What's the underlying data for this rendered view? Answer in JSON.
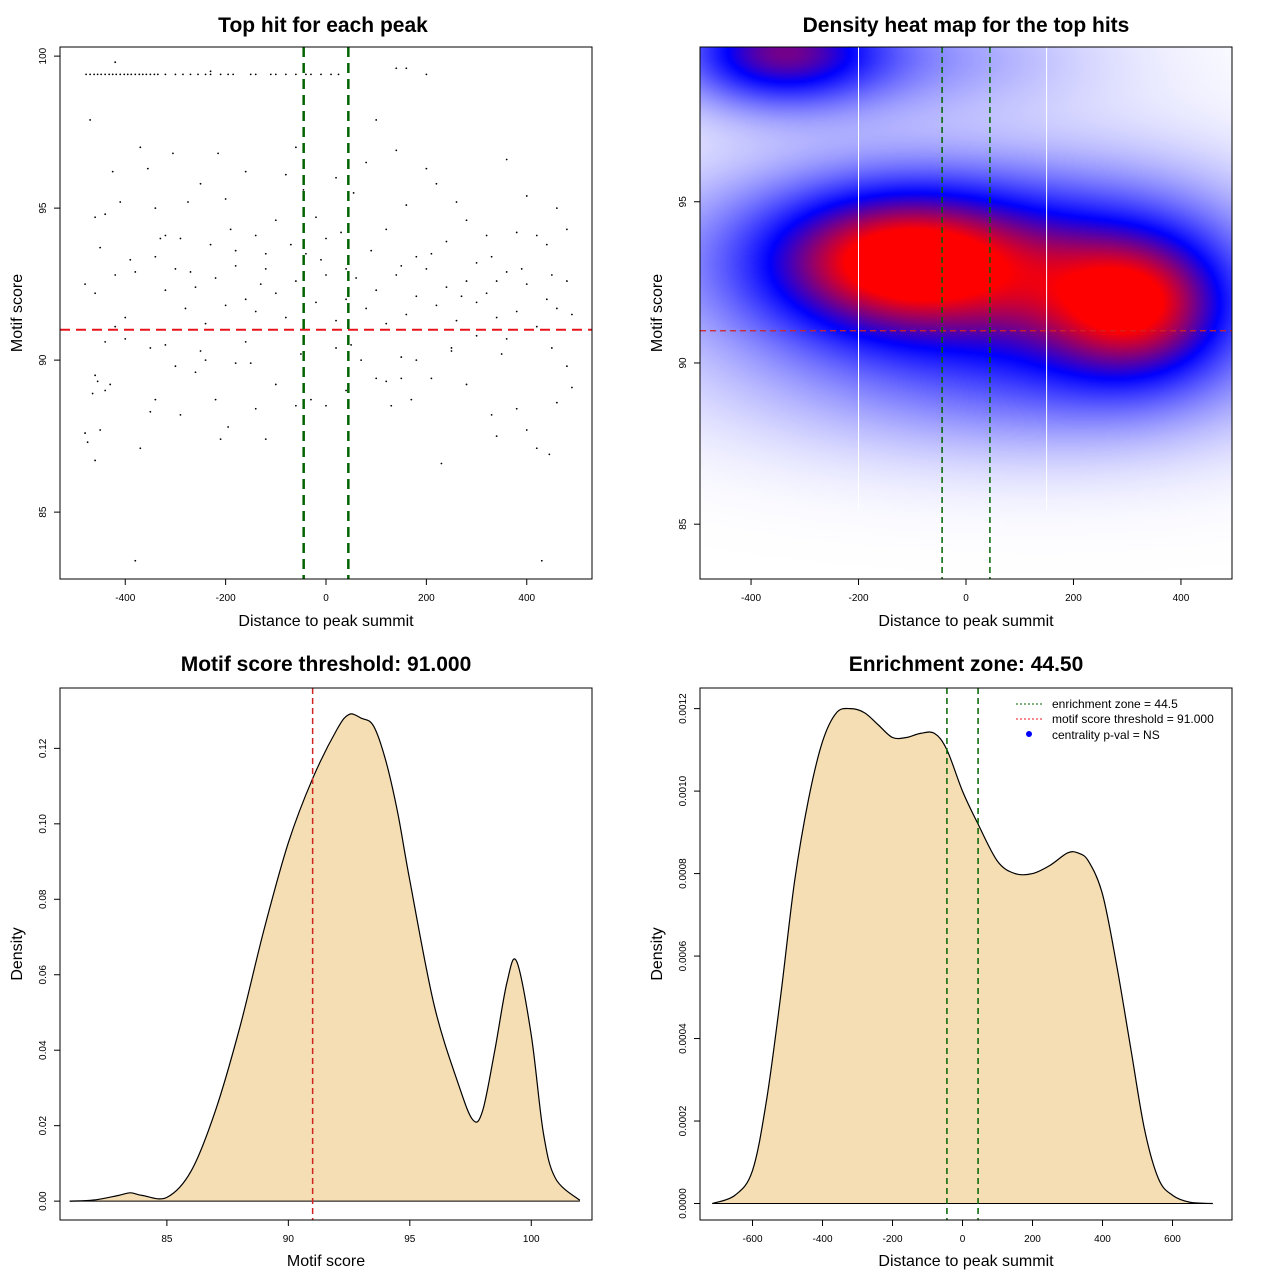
{
  "chart_data": [
    {
      "type": "scatter",
      "title": "Top hit for each peak",
      "xlabel": "Distance to peak summit",
      "ylabel": "Motif score",
      "xlim": [
        -530,
        530
      ],
      "ylim": [
        82.8,
        100.3
      ],
      "xticks": [
        "-400",
        "-200",
        "0",
        "200",
        "400"
      ],
      "yticks": [
        "85",
        "90",
        "95",
        "100"
      ],
      "hlines": [
        {
          "y": 91.0,
          "color": "#e8141e"
        }
      ],
      "vlines": [
        {
          "x": -44.5,
          "color": "#006400"
        },
        {
          "x": 44.5,
          "color": "#006400"
        }
      ],
      "points_note": "approx. 500 top hits; score-capped row near 99.4",
      "top_row_score": 99.4,
      "top_row_x": [
        -478,
        -470,
        -462,
        -455,
        -448,
        -440,
        -432,
        -425,
        -418,
        -410,
        -402,
        -395,
        -388,
        -380,
        -372,
        -365,
        -358,
        -350,
        -342,
        -335,
        -320,
        -300,
        -285,
        -270,
        -255,
        -240,
        -230,
        -210,
        -195,
        -185,
        -150,
        -140,
        -110,
        -100,
        -80,
        -60,
        -40,
        -30,
        -10,
        10,
        25,
        200
      ],
      "scatter_points": [
        [
          -480,
          87.6
        ],
        [
          -475,
          87.3
        ],
        [
          -465,
          88.9
        ],
        [
          -460,
          86.7
        ],
        [
          -455,
          89.3
        ],
        [
          -450,
          87.7
        ],
        [
          -440,
          89.0
        ],
        [
          -430,
          89.2
        ],
        [
          -420,
          91.1
        ],
        [
          -400,
          90.7
        ],
        [
          -380,
          83.4
        ],
        [
          -370,
          87.1
        ],
        [
          -350,
          88.3
        ],
        [
          -340,
          88.7
        ],
        [
          -320,
          90.5
        ],
        [
          -300,
          89.8
        ],
        [
          -290,
          88.2
        ],
        [
          -260,
          89.6
        ],
        [
          -240,
          90.0
        ],
        [
          -220,
          88.7
        ],
        [
          -210,
          87.4
        ],
        [
          -195,
          87.8
        ],
        [
          -180,
          89.9
        ],
        [
          -160,
          90.6
        ],
        [
          -140,
          88.4
        ],
        [
          -120,
          87.4
        ],
        [
          -100,
          89.2
        ],
        [
          -60,
          88.5
        ],
        [
          -30,
          88.7
        ],
        [
          0,
          88.5
        ],
        [
          20,
          90.4
        ],
        [
          40,
          89.0
        ],
        [
          70,
          90.0
        ],
        [
          100,
          89.4
        ],
        [
          120,
          89.3
        ],
        [
          130,
          88.5
        ],
        [
          150,
          89.4
        ],
        [
          170,
          88.7
        ],
        [
          180,
          90.0
        ],
        [
          210,
          89.4
        ],
        [
          230,
          86.6
        ],
        [
          250,
          90.4
        ],
        [
          280,
          89.2
        ],
        [
          300,
          90.8
        ],
        [
          330,
          88.2
        ],
        [
          340,
          87.5
        ],
        [
          360,
          90.7
        ],
        [
          380,
          88.4
        ],
        [
          400,
          87.7
        ],
        [
          420,
          87.1
        ],
        [
          430,
          83.4
        ],
        [
          445,
          86.9
        ],
        [
          460,
          88.6
        ],
        [
          480,
          89.8
        ],
        [
          490,
          89.1
        ],
        [
          -470,
          97.9
        ],
        [
          -460,
          94.7
        ],
        [
          -440,
          94.8
        ],
        [
          -425,
          96.2
        ],
        [
          -410,
          95.2
        ],
        [
          -390,
          93.3
        ],
        [
          -370,
          97.0
        ],
        [
          -355,
          96.3
        ],
        [
          -340,
          95.0
        ],
        [
          -320,
          94.1
        ],
        [
          -305,
          96.8
        ],
        [
          -290,
          94.0
        ],
        [
          -275,
          95.2
        ],
        [
          -250,
          95.8
        ],
        [
          -230,
          93.8
        ],
        [
          -215,
          96.8
        ],
        [
          -200,
          95.3
        ],
        [
          -180,
          93.6
        ],
        [
          -160,
          96.2
        ],
        [
          -140,
          94.1
        ],
        [
          -120,
          93.5
        ],
        [
          -100,
          94.6
        ],
        [
          -80,
          96.1
        ],
        [
          -60,
          97.0
        ],
        [
          -45,
          95.6
        ],
        [
          -20,
          94.7
        ],
        [
          0,
          94.0
        ],
        [
          20,
          96.0
        ],
        [
          40,
          93.0
        ],
        [
          55,
          95.5
        ],
        [
          80,
          96.5
        ],
        [
          100,
          97.9
        ],
        [
          120,
          94.3
        ],
        [
          140,
          96.9
        ],
        [
          160,
          95.1
        ],
        [
          180,
          93.4
        ],
        [
          200,
          96.3
        ],
        [
          220,
          95.8
        ],
        [
          240,
          93.9
        ],
        [
          260,
          95.2
        ],
        [
          280,
          94.6
        ],
        [
          300,
          93.2
        ],
        [
          320,
          94.1
        ],
        [
          340,
          92.6
        ],
        [
          360,
          96.6
        ],
        [
          380,
          94.2
        ],
        [
          400,
          95.4
        ],
        [
          420,
          94.1
        ],
        [
          440,
          93.8
        ],
        [
          460,
          95.0
        ],
        [
          480,
          94.3
        ],
        [
          -480,
          92.5
        ],
        [
          -460,
          92.2
        ],
        [
          -440,
          90.6
        ],
        [
          -420,
          92.8
        ],
        [
          -400,
          91.4
        ],
        [
          -380,
          92.9
        ],
        [
          -360,
          91.0
        ],
        [
          -340,
          93.4
        ],
        [
          -320,
          92.3
        ],
        [
          -300,
          93.0
        ],
        [
          -280,
          91.7
        ],
        [
          -260,
          92.4
        ],
        [
          -240,
          91.2
        ],
        [
          -220,
          92.7
        ],
        [
          -200,
          91.8
        ],
        [
          -180,
          93.1
        ],
        [
          -160,
          92.0
        ],
        [
          -140,
          91.6
        ],
        [
          -120,
          93.0
        ],
        [
          -100,
          92.2
        ],
        [
          -80,
          91.4
        ],
        [
          -60,
          92.6
        ],
        [
          -40,
          93.5
        ],
        [
          -20,
          91.9
        ],
        [
          0,
          92.8
        ],
        [
          20,
          91.3
        ],
        [
          40,
          92.0
        ],
        [
          60,
          92.7
        ],
        [
          80,
          91.7
        ],
        [
          100,
          92.3
        ],
        [
          120,
          91.2
        ],
        [
          140,
          92.8
        ],
        [
          160,
          91.5
        ],
        [
          180,
          92.1
        ],
        [
          200,
          93.0
        ],
        [
          220,
          91.8
        ],
        [
          240,
          92.4
        ],
        [
          260,
          91.3
        ],
        [
          280,
          92.6
        ],
        [
          300,
          91.9
        ],
        [
          320,
          92.2
        ],
        [
          340,
          91.4
        ],
        [
          360,
          92.9
        ],
        [
          380,
          91.6
        ],
        [
          400,
          92.5
        ],
        [
          420,
          91.1
        ],
        [
          440,
          92.0
        ],
        [
          460,
          91.7
        ],
        [
          480,
          92.6
        ],
        [
          490,
          91.5
        ],
        [
          -450,
          93.7
        ],
        [
          -330,
          94.0
        ],
        [
          -270,
          92.9
        ],
        [
          -190,
          94.3
        ],
        [
          -130,
          92.5
        ],
        [
          -70,
          93.8
        ],
        [
          -10,
          93.3
        ],
        [
          30,
          94.2
        ],
        [
          90,
          93.6
        ],
        [
          150,
          93.1
        ],
        [
          210,
          93.5
        ],
        [
          270,
          92.1
        ],
        [
          330,
          93.4
        ],
        [
          390,
          93.0
        ],
        [
          450,
          92.8
        ],
        [
          -420,
          99.8
        ],
        [
          -230,
          99.5
        ],
        [
          140,
          99.6
        ],
        [
          160,
          99.6
        ],
        [
          -460,
          89.5
        ],
        [
          -350,
          90.4
        ],
        [
          -250,
          90.3
        ],
        [
          -150,
          89.9
        ],
        [
          -50,
          90.2
        ],
        [
          50,
          90.5
        ],
        [
          150,
          90.1
        ],
        [
          250,
          90.3
        ],
        [
          350,
          90.2
        ],
        [
          450,
          90.4
        ]
      ]
    },
    {
      "type": "heatmap",
      "title": "Density heat map for the top hits",
      "xlabel": "Distance to peak summit",
      "ylabel": "Motif score",
      "xlim": [
        -495,
        495
      ],
      "ylim": [
        83.3,
        99.8
      ],
      "xticks": [
        "-400",
        "-200",
        "0",
        "200",
        "400"
      ],
      "yticks": [
        "85",
        "90",
        "95"
      ],
      "colormap": [
        "#ffffff",
        "#0000ff",
        "#ff0000"
      ],
      "hotspots": [
        {
          "x": -120,
          "y": 93.2,
          "sx": 180,
          "sy": 1.6,
          "w": 1.0
        },
        {
          "x": -120,
          "y": 93.2,
          "sx": 340,
          "sy": 2.2,
          "w": 0.55
        },
        {
          "x": 320,
          "y": 91.8,
          "sx": 120,
          "sy": 1.6,
          "w": 0.8
        },
        {
          "x": 280,
          "y": 92.5,
          "sx": 230,
          "sy": 2.4,
          "w": 0.45
        },
        {
          "x": -350,
          "y": 99.7,
          "sx": 130,
          "sy": 1.2,
          "w": 0.85
        },
        {
          "x": -150,
          "y": 99.5,
          "sx": 260,
          "sy": 1.3,
          "w": 0.35
        },
        {
          "x": 80,
          "y": 89.5,
          "sx": 350,
          "sy": 1.8,
          "w": 0.35
        }
      ],
      "hlines": [
        {
          "y": 91.0,
          "color": "#d22323"
        }
      ],
      "vlines": [
        {
          "x": -44.5,
          "color": "#006400"
        },
        {
          "x": 44.5,
          "color": "#006400"
        }
      ],
      "grid_vlines": [
        -200,
        150
      ]
    },
    {
      "type": "area",
      "title": "Motif score threshold: 91.000",
      "xlabel": "Motif score",
      "ylabel": "Density",
      "xlim": [
        80.6,
        102.5
      ],
      "ylim": [
        -0.005,
        0.136
      ],
      "xticks": [
        "85",
        "90",
        "95",
        "100"
      ],
      "yticks": [
        "0.00",
        "0.02",
        "0.04",
        "0.06",
        "0.08",
        "0.10",
        "0.12"
      ],
      "x": [
        81.0,
        82.0,
        83.0,
        83.5,
        84.0,
        85.0,
        86.0,
        87.0,
        88.0,
        89.0,
        90.0,
        91.0,
        92.0,
        92.5,
        93.0,
        93.5,
        94.0,
        94.5,
        95.0,
        96.0,
        97.0,
        97.6,
        98.0,
        98.5,
        99.0,
        99.4,
        100.0,
        100.5,
        101.0,
        102.0
      ],
      "y": [
        0.0,
        0.0003,
        0.0015,
        0.0022,
        0.0015,
        0.001,
        0.008,
        0.024,
        0.046,
        0.072,
        0.095,
        0.112,
        0.125,
        0.129,
        0.128,
        0.126,
        0.117,
        0.103,
        0.085,
        0.052,
        0.031,
        0.0215,
        0.024,
        0.04,
        0.058,
        0.0635,
        0.044,
        0.018,
        0.006,
        0.0002
      ],
      "threshold": 91.0,
      "fill": "#f5deb3",
      "threshold_color": "#d22323"
    },
    {
      "type": "area",
      "title": "Enrichment zone: 44.50",
      "xlabel": "Distance to peak summit",
      "ylabel": "Density",
      "xlim": [
        -750,
        770
      ],
      "ylim": [
        -4e-05,
        0.00125
      ],
      "xticks": [
        "-600",
        "-400",
        "-200",
        "0",
        "200",
        "400",
        "600"
      ],
      "yticks": [
        "0.0000",
        "0.0002",
        "0.0004",
        "0.0006",
        "0.0008",
        "0.0010",
        "0.0012"
      ],
      "x": [
        -715,
        -650,
        -600,
        -560,
        -520,
        -480,
        -440,
        -400,
        -360,
        -320,
        -280,
        -240,
        -200,
        -160,
        -120,
        -80,
        -44.5,
        0,
        44.5,
        100,
        150,
        200,
        250,
        300,
        330,
        360,
        400,
        440,
        480,
        520,
        560,
        600,
        650,
        715
      ],
      "y": [
        0.0,
        2e-05,
        8e-05,
        0.00025,
        0.0005,
        0.00078,
        0.00098,
        0.00112,
        0.00119,
        0.0012,
        0.00119,
        0.00116,
        0.00113,
        0.00113,
        0.00114,
        0.00114,
        0.0011,
        0.001,
        0.00092,
        0.00083,
        0.0008,
        0.0008,
        0.00082,
        0.00085,
        0.00085,
        0.00083,
        0.00075,
        0.00058,
        0.00038,
        0.00018,
        6e-05,
        2e-05,
        3e-06,
        0.0
      ],
      "enrichment_zone": 44.5,
      "fill": "#f5deb3",
      "zone_color": "#006400",
      "legend": [
        "enrichment zone = 44.5",
        "motif score threshold = 91.000",
        "centrality p-val = NS"
      ],
      "legend_colors": [
        "#006400",
        "#e8141e",
        "#0000ff"
      ],
      "legend_position": "top-right"
    }
  ]
}
